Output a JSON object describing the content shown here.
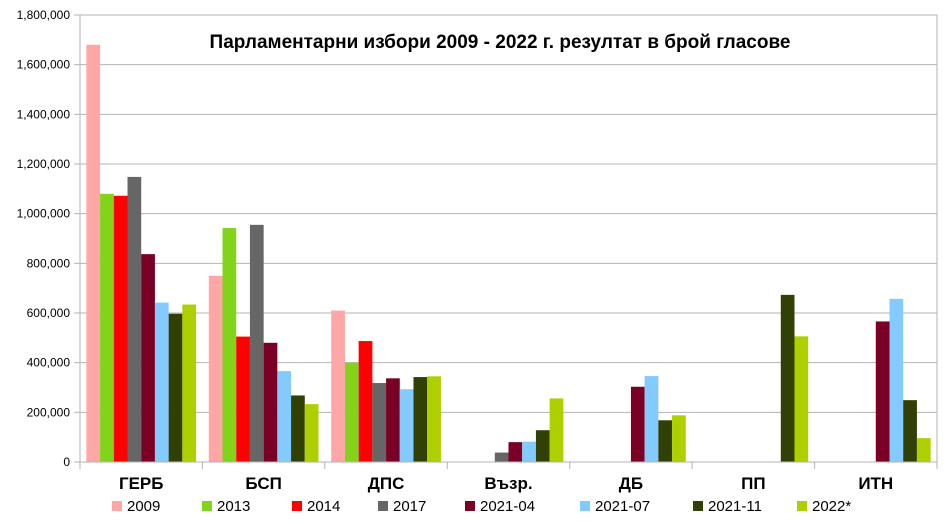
{
  "chart_data": {
    "type": "bar",
    "title": "Парламентарни избори 2009 - 2022 г. резултат в брой гласове",
    "xlabel": "",
    "ylabel": "",
    "ylim": [
      0,
      1800000
    ],
    "yticks": [
      "0",
      "200,000",
      "400,000",
      "600,000",
      "800,000",
      "1,000,000",
      "1,200,000",
      "1,400,000",
      "1,600,000",
      "1,800,000"
    ],
    "ytick_values": [
      0,
      200000,
      400000,
      600000,
      800000,
      1000000,
      1200000,
      1400000,
      1600000,
      1800000
    ],
    "grid": true,
    "legend_position": "bottom",
    "categories": [
      "ГЕРБ",
      "БСП",
      "ДПС",
      "Възр.",
      "ДБ",
      "ПП",
      "ИТН"
    ],
    "series": [
      {
        "name": "2009",
        "color": "#ffa6a6",
        "values": [
          1680000,
          750000,
          610000,
          null,
          null,
          null,
          null
        ]
      },
      {
        "name": "2013",
        "color": "#81d41a",
        "values": [
          1080000,
          942000,
          400000,
          null,
          null,
          null,
          null
        ]
      },
      {
        "name": "2014",
        "color": "#ff0000",
        "values": [
          1072000,
          505000,
          487000,
          null,
          null,
          null,
          null
        ]
      },
      {
        "name": "2017",
        "color": "#666666",
        "values": [
          1148000,
          955000,
          318000,
          38000,
          null,
          null,
          null
        ]
      },
      {
        "name": "2021-04",
        "color": "#7b0026",
        "values": [
          837000,
          480000,
          337000,
          80000,
          303000,
          null,
          566000
        ]
      },
      {
        "name": "2021-07",
        "color": "#83caff",
        "values": [
          642000,
          366000,
          293000,
          82000,
          346000,
          null,
          657000
        ]
      },
      {
        "name": "2021-11",
        "color": "#314004",
        "values": [
          597000,
          268000,
          342000,
          128000,
          168000,
          673000,
          249000
        ]
      },
      {
        "name": "2022*",
        "color": "#aecf00",
        "values": [
          634000,
          233000,
          345000,
          256000,
          188000,
          506000,
          96000
        ]
      }
    ]
  }
}
